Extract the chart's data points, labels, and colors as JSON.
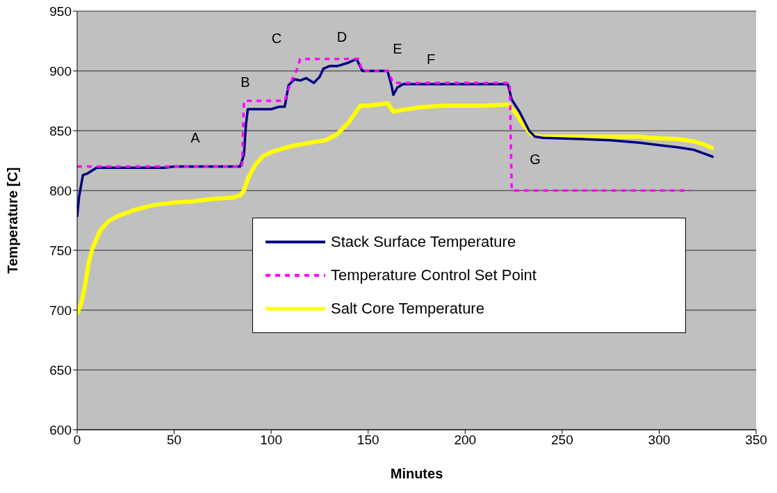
{
  "chart_data": {
    "type": "line",
    "xlabel": "Minutes",
    "ylabel": "Temperature [C]",
    "xlim": [
      0,
      350
    ],
    "xticks": [
      0,
      50,
      100,
      150,
      200,
      250,
      300,
      350
    ],
    "ylim": [
      600,
      950
    ],
    "yticks": [
      600,
      650,
      700,
      750,
      800,
      850,
      900,
      950
    ],
    "grid": "y",
    "legend": "center",
    "marker": "none",
    "series": [
      {
        "name": "Stack Surface Temperature",
        "color": "#000080",
        "line_style": "solid",
        "x": [
          0,
          1,
          3,
          5,
          10,
          45,
          50,
          84,
          86,
          87,
          88,
          100,
          104,
          107,
          109,
          112,
          115,
          118,
          122,
          125,
          127,
          130,
          134,
          140,
          144,
          147,
          160,
          162,
          163,
          165,
          168,
          222,
          224,
          228,
          233,
          236,
          240,
          260,
          275,
          290,
          300,
          310,
          318,
          328
        ],
        "values": [
          778,
          795,
          813,
          814,
          819,
          819,
          820,
          820,
          830,
          855,
          868,
          868,
          870,
          870,
          888,
          893,
          892,
          894,
          890,
          895,
          902,
          904,
          904,
          907,
          910,
          900,
          900,
          888,
          880,
          886,
          889,
          889,
          876,
          866,
          850,
          845,
          844,
          843,
          842,
          840,
          838,
          836,
          834,
          828
        ]
      },
      {
        "name": "Temperature Control Set Point",
        "color": "#ff00ff",
        "line_style": "dashed",
        "x": [
          0,
          85,
          86,
          107,
          110,
          113,
          115,
          145,
          147,
          160,
          163,
          165,
          223,
          224,
          316
        ],
        "values": [
          820,
          820,
          875,
          875,
          890,
          900,
          910,
          910,
          900,
          900,
          890,
          890,
          890,
          800,
          800
        ]
      },
      {
        "name": "Salt Core Temperature",
        "color": "#ffff00",
        "line_style": "solid",
        "x": [
          0,
          2,
          4,
          6,
          8,
          12,
          16,
          20,
          30,
          40,
          50,
          60,
          70,
          80,
          84,
          86,
          88,
          92,
          96,
          100,
          110,
          120,
          128,
          134,
          140,
          146,
          150,
          155,
          160,
          163,
          170,
          180,
          190,
          210,
          222,
          226,
          230,
          234,
          238,
          290,
          295,
          310,
          318,
          324,
          328
        ],
        "values": [
          697,
          705,
          720,
          740,
          752,
          767,
          774,
          778,
          784,
          788,
          790,
          791,
          793,
          794,
          796,
          800,
          810,
          822,
          829,
          832,
          837,
          840,
          842,
          847,
          857,
          871,
          871,
          872,
          873,
          866,
          868,
          870,
          871,
          871,
          872,
          865,
          855,
          847,
          845,
          845,
          844,
          843,
          841,
          838,
          835
        ]
      }
    ],
    "annotations": [
      "A",
      "B",
      "C",
      "D",
      "E",
      "F",
      "G"
    ]
  }
}
